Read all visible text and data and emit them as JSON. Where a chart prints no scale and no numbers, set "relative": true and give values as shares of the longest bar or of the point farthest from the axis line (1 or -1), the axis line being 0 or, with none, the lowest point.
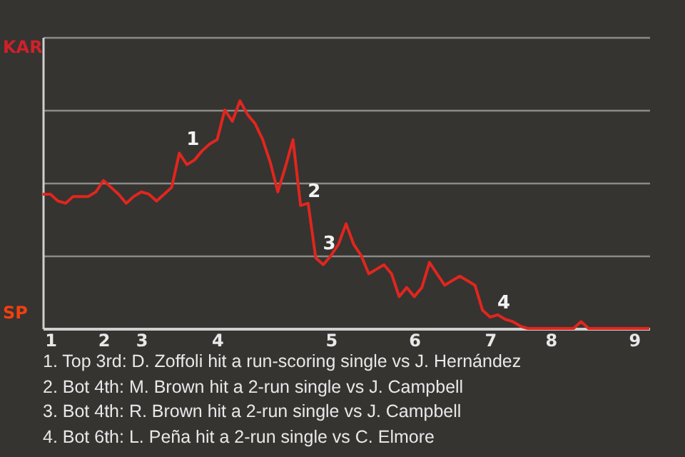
{
  "chart_data": {
    "type": "line",
    "relative": true,
    "grid": "y",
    "line_style": "solid",
    "categories": [
      null,
      "1",
      null,
      null,
      null,
      null,
      null,
      null,
      "2",
      null,
      null,
      null,
      null,
      "3",
      null,
      null,
      null,
      null,
      null,
      null,
      null,
      null,
      null,
      "4",
      null,
      null,
      null,
      null,
      null,
      null,
      null,
      null,
      null,
      null,
      null,
      null,
      null,
      null,
      "5",
      null,
      null,
      null,
      null,
      null,
      null,
      null,
      null,
      null,
      null,
      "6",
      null,
      null,
      null,
      null,
      null,
      null,
      null,
      null,
      null,
      "7",
      null,
      null,
      null,
      null,
      null,
      null,
      null,
      "8",
      null,
      null,
      null,
      null,
      null,
      null,
      null,
      null,
      null,
      null,
      "9",
      null,
      null
    ],
    "series": [
      {
        "color": "#e0261e",
        "values": [
          0.59,
          0.59,
          0.56,
          0.55,
          0.58,
          0.58,
          0.58,
          0.6,
          0.65,
          0.62,
          0.59,
          0.55,
          0.58,
          0.6,
          0.59,
          0.56,
          0.59,
          0.62,
          0.77,
          0.72,
          0.74,
          0.78,
          0.81,
          0.83,
          0.96,
          0.91,
          1,
          0.94,
          0.9,
          0.83,
          0.73,
          0.6,
          0.71,
          0.83,
          0.54,
          0.55,
          0.31,
          0.28,
          0.32,
          0.37,
          0.46,
          0.37,
          0.32,
          0.24,
          0.26,
          0.28,
          0.24,
          0.14,
          0.18,
          0.14,
          0.18,
          0.29,
          0.24,
          0.19,
          0.21,
          0.23,
          0.21,
          0.19,
          0.08,
          0.05,
          0.06,
          0.04,
          0.03,
          0.01,
          0,
          0,
          0,
          0,
          0,
          0,
          0,
          0.03,
          0,
          0,
          0,
          0,
          0,
          0,
          0,
          0,
          0
        ]
      }
    ],
    "annotations": [
      "KAR",
      "SP",
      {
        "text": "1",
        "y": 0.77
      },
      {
        "text": "2",
        "y": 0.54
      },
      {
        "text": "3",
        "y": 0.31
      },
      {
        "text": "4",
        "y": 0.05
      },
      "1. Top 3rd: D. Zoffoli hit a run-scoring single vs J. Hernández",
      "2. Bot 4th: M. Brown hit a 2-run single vs J. Campbell",
      "3. Bot 4th: R. Brown hit a 2-run single vs J. Campbell",
      "4. Bot 6th: L. Peña hit a 2-run single vs C. Elmore"
    ]
  }
}
